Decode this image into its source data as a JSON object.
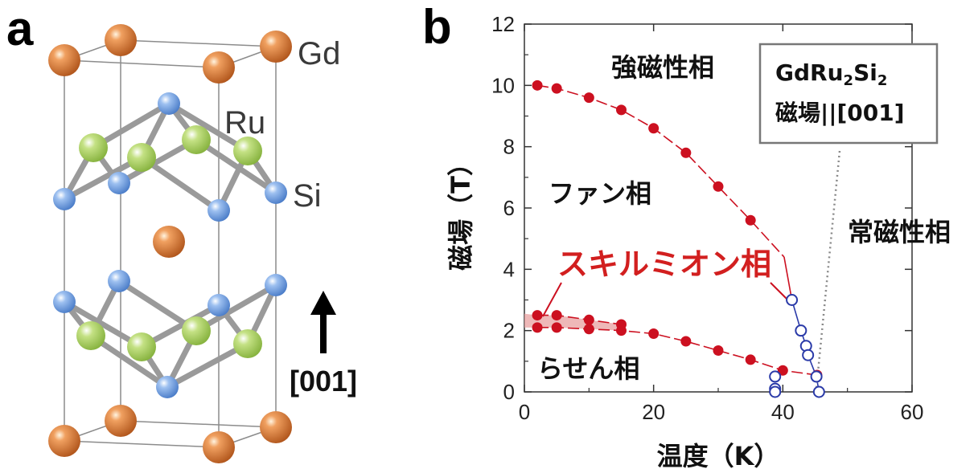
{
  "panel_a": {
    "letter": "a",
    "atom_labels": {
      "gd": "Gd",
      "ru": "Ru",
      "si": "Si"
    },
    "direction_label": "[001]",
    "colors": {
      "gd": "#c96a2a",
      "ru": "#9fcc55",
      "si": "#6a9ce0"
    }
  },
  "panel_b": {
    "letter": "b",
    "phase_labels": {
      "ferro": "強磁性相",
      "fan": "ファン相",
      "skyrmion": "スキルミオン相",
      "helical": "らせん相",
      "para": "常磁性相"
    },
    "legend": {
      "line1_main": "GdRu",
      "line1_sub1": "2",
      "line1_mid": "Si",
      "line1_sub2": "2",
      "line2": "磁場||[001]"
    },
    "colors": {
      "red_series": "#cc1020",
      "blue_series": "#2a3aa8",
      "skyrmion_band": "#e8a0a0"
    }
  },
  "chart_data": {
    "type": "scatter",
    "xlabel": "温度（K）",
    "ylabel": "磁場（T）",
    "xlim": [
      0,
      60
    ],
    "ylim": [
      0,
      12
    ],
    "xticks": [
      "0",
      "20",
      "40",
      "60"
    ],
    "yticks": [
      "0",
      "2",
      "4",
      "6",
      "8",
      "10",
      "12"
    ],
    "grid": false,
    "series": [
      {
        "marker": "filled-red",
        "values": [
          [
            2,
            10.0
          ],
          [
            5,
            9.9
          ],
          [
            10,
            9.6
          ],
          [
            15,
            9.2
          ],
          [
            20,
            8.6
          ],
          [
            25,
            7.8
          ],
          [
            30,
            6.7
          ],
          [
            35,
            5.6
          ]
        ]
      },
      {
        "marker": "filled-red",
        "values": [
          [
            2,
            2.5
          ],
          [
            5,
            2.5
          ],
          [
            10,
            2.35
          ],
          [
            15,
            2.2
          ]
        ]
      },
      {
        "marker": "filled-red",
        "values": [
          [
            2,
            2.1
          ],
          [
            5,
            2.1
          ],
          [
            10,
            2.05
          ],
          [
            15,
            2.0
          ],
          [
            20,
            1.9
          ],
          [
            25,
            1.65
          ],
          [
            30,
            1.35
          ],
          [
            35,
            1.05
          ],
          [
            40,
            0.7
          ],
          [
            45.3,
            0.55
          ]
        ]
      },
      {
        "marker": "open-blue",
        "values": [
          [
            41.4,
            3.0
          ],
          [
            42.8,
            2.0
          ],
          [
            43.6,
            1.5
          ],
          [
            43.9,
            1.2
          ],
          [
            45.2,
            0.5
          ],
          [
            45.6,
            0.0
          ],
          [
            38.8,
            0.5
          ],
          [
            38.8,
            0.1
          ],
          [
            38.8,
            0.0
          ]
        ]
      }
    ]
  }
}
